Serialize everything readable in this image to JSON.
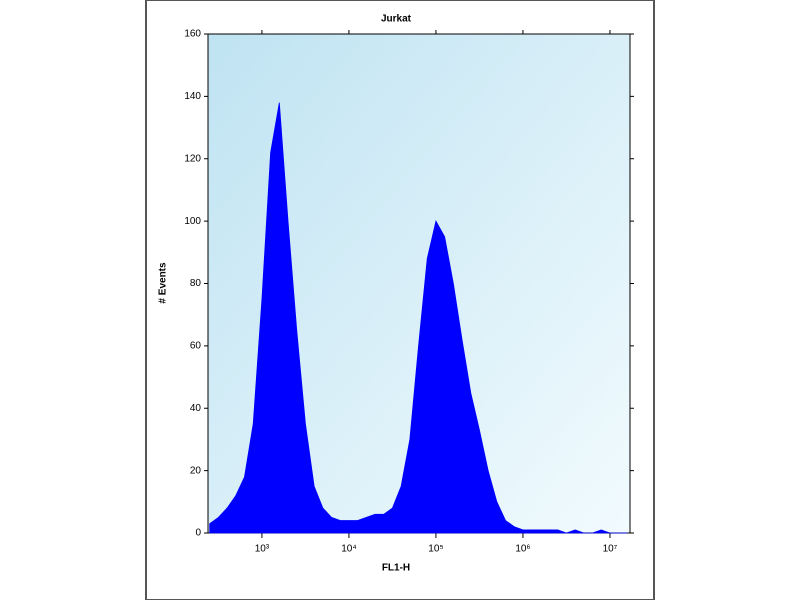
{
  "chart_data": {
    "type": "area",
    "title": "Jurkat",
    "x_label": "FL1-H",
    "y_label": "# Events",
    "x": [
      251,
      316,
      398,
      501,
      631,
      794,
      1000,
      1259,
      1585,
      1995,
      2512,
      3162,
      3981,
      5012,
      6310,
      7943,
      10000,
      12589,
      15849,
      19953,
      25119,
      31623,
      39811,
      50119,
      63096,
      79433,
      100000,
      125893,
      158489,
      199526,
      251189,
      316228,
      398107,
      501187,
      630957,
      794328,
      1000000,
      1258925,
      1584893,
      1995262,
      2511886,
      3162278,
      3981072,
      5011872,
      6309573,
      7943282,
      10000000,
      12589254,
      15848932
    ],
    "values": [
      3,
      5,
      8,
      12,
      18,
      35,
      75,
      122,
      138,
      100,
      65,
      35,
      15,
      8,
      5,
      4,
      4,
      4,
      5,
      6,
      6,
      8,
      15,
      30,
      60,
      88,
      100,
      95,
      80,
      62,
      45,
      33,
      20,
      10,
      4,
      2,
      1,
      1,
      1,
      1,
      1,
      0,
      1,
      0,
      0,
      1,
      0,
      0,
      0
    ],
    "color": "#0000ff",
    "x_log": true,
    "xlim": [
      240,
      17000000
    ],
    "xticks": [
      {
        "value": 1000,
        "label": "10³"
      },
      {
        "value": 10000,
        "label": "10⁴"
      },
      {
        "value": 100000,
        "label": "10⁵"
      },
      {
        "value": 1000000,
        "label": "10⁶"
      },
      {
        "value": 10000000,
        "label": "10⁷"
      }
    ],
    "ylim": [
      0,
      160
    ],
    "yticks": [
      0,
      20,
      40,
      60,
      80,
      100,
      120,
      140,
      160
    ]
  }
}
